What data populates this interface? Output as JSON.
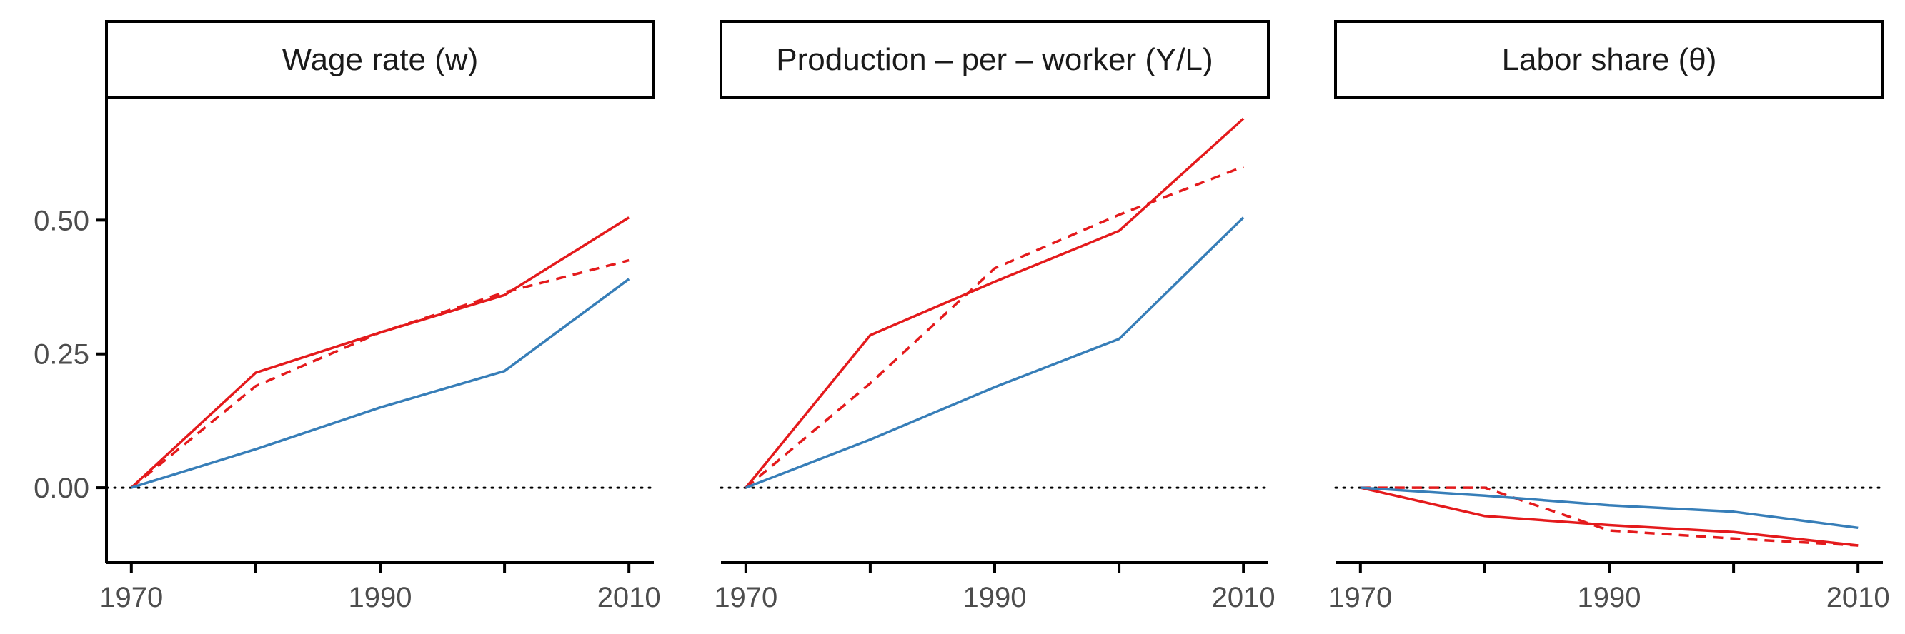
{
  "chart_data": {
    "type": "line",
    "x": [
      1970,
      1980,
      1990,
      2000,
      2010
    ],
    "xlim": [
      1968,
      2012
    ],
    "x_ticks": [
      1970,
      1990,
      2010
    ],
    "y_ticks": [
      0.0,
      0.25,
      0.5
    ],
    "y_tick_labels": [
      "0.00",
      "0.25",
      "0.50"
    ],
    "ylim": [
      -0.14,
      0.73
    ],
    "reference_line": {
      "y": 0,
      "style": "dotted"
    },
    "colors": {
      "red": "#e41a1c",
      "blue": "#377eb8",
      "axis": "#000000",
      "ref": "#000000"
    },
    "panels": [
      {
        "title": "Wage rate (w)",
        "series": [
          {
            "name": "red-solid",
            "color": "red",
            "dash": "solid",
            "values": [
              0.0,
              0.215,
              0.29,
              0.36,
              0.505
            ]
          },
          {
            "name": "red-dashed",
            "color": "red",
            "dash": "dashed",
            "values": [
              0.0,
              0.19,
              0.29,
              0.365,
              0.425
            ]
          },
          {
            "name": "blue-solid",
            "color": "blue",
            "dash": "solid",
            "values": [
              0.0,
              0.072,
              0.15,
              0.218,
              0.39
            ]
          }
        ]
      },
      {
        "title": "Production – per – worker (Y/L)",
        "series": [
          {
            "name": "red-solid",
            "color": "red",
            "dash": "solid",
            "values": [
              0.0,
              0.285,
              0.385,
              0.48,
              0.69
            ]
          },
          {
            "name": "red-dashed",
            "color": "red",
            "dash": "dashed",
            "values": [
              0.0,
              0.195,
              0.41,
              0.51,
              0.6
            ]
          },
          {
            "name": "blue-solid",
            "color": "blue",
            "dash": "solid",
            "values": [
              0.0,
              0.09,
              0.188,
              0.278,
              0.505
            ]
          }
        ]
      },
      {
        "title": "Labor share (θ)",
        "series": [
          {
            "name": "red-solid",
            "color": "red",
            "dash": "solid",
            "values": [
              0.0,
              -0.053,
              -0.07,
              -0.083,
              -0.108
            ]
          },
          {
            "name": "red-dashed",
            "color": "red",
            "dash": "dashed",
            "values": [
              0.0,
              0.0,
              -0.08,
              -0.095,
              -0.108
            ]
          },
          {
            "name": "blue-solid",
            "color": "blue",
            "dash": "solid",
            "values": [
              0.0,
              -0.015,
              -0.033,
              -0.045,
              -0.075
            ]
          }
        ]
      }
    ]
  }
}
